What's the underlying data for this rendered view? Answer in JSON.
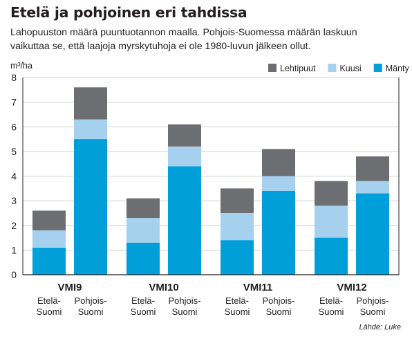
{
  "title": "Etelä ja pohjoinen eri tahdissa",
  "subtitle_lines": [
    "Lahopuuston määrä puuntuotannon maalla. Pohjois-Suomessa määrän laskuun",
    "vaikuttaa se, että laajoja myrskytuhoja ei ole 1980-luvun jälkeen ollut."
  ],
  "source": "Lähde: Luke",
  "colors": {
    "Mänty": "#009fda",
    "Kuusi": "#a6d1ee",
    "Lehtipuut": "#6d6e71",
    "grid": "#d1d3d4",
    "axis": "#231f20"
  },
  "chart_data": {
    "type": "bar",
    "stacked": true,
    "ylabel": "m³/ha",
    "ylim": [
      0,
      8
    ],
    "yticks": [
      0,
      1,
      2,
      3,
      4,
      5,
      6,
      7,
      8
    ],
    "grid": true,
    "legend_position": "top-right",
    "legend_order": [
      "Lehtipuut",
      "Kuusi",
      "Mänty"
    ],
    "groups": [
      "VMI9",
      "VMI10",
      "VMI11",
      "VMI12"
    ],
    "subcategories": [
      [
        "Etelä-",
        "Suomi"
      ],
      [
        "Pohjois-",
        "Suomi"
      ]
    ],
    "series": [
      {
        "name": "Mänty",
        "values": [
          1.1,
          5.5,
          1.3,
          4.4,
          1.4,
          3.4,
          1.5,
          3.3
        ]
      },
      {
        "name": "Kuusi",
        "values": [
          0.7,
          0.8,
          1.0,
          0.8,
          1.1,
          0.6,
          1.3,
          0.5
        ]
      },
      {
        "name": "Lehtipuut",
        "values": [
          0.8,
          1.3,
          0.8,
          0.9,
          1.0,
          1.1,
          1.0,
          1.0
        ]
      }
    ]
  }
}
